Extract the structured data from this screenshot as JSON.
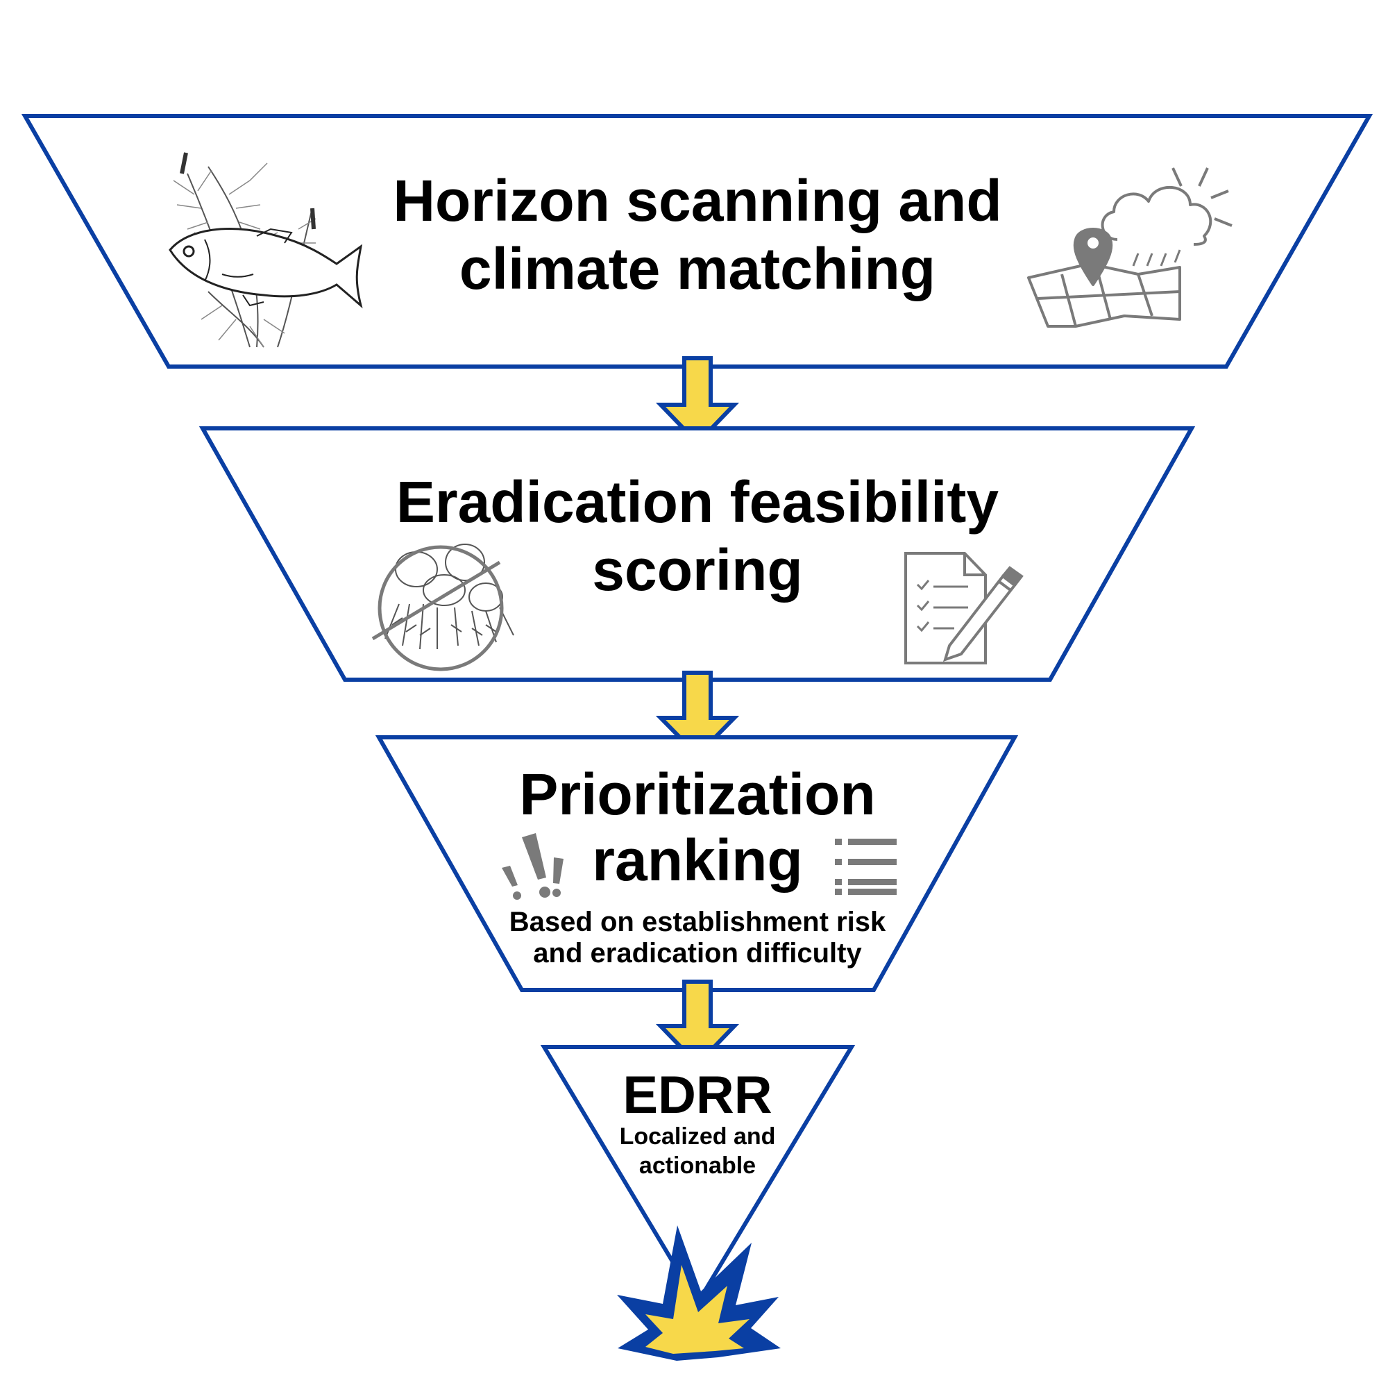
{
  "stages": [
    {
      "title_line1": "Horizon scanning and",
      "title_line2": "climate matching"
    },
    {
      "title_line1": "Eradication feasibility",
      "title_line2": "scoring"
    },
    {
      "title_line1": "Prioritization",
      "title_line2": "ranking",
      "note_line1": "Based on establishment risk",
      "note_line2": "and eradication difficulty"
    },
    {
      "title": "EDRR",
      "note_line1": "Localized and",
      "note_line2": "actionable"
    }
  ],
  "colors": {
    "outline": "#0a3fa3",
    "arrow_fill": "#f7d84a",
    "arrow_stroke": "#0a3fa3",
    "icon": "#7a7a7a",
    "burst_outer": "#0a3fa3",
    "burst_inner": "#f7d84a"
  },
  "icons": [
    "fish-plant-icon",
    "weather-map-icon",
    "no-plant-icon",
    "checklist-pencil-icon",
    "exclamation-icon",
    "list-icon",
    "burst-icon"
  ]
}
